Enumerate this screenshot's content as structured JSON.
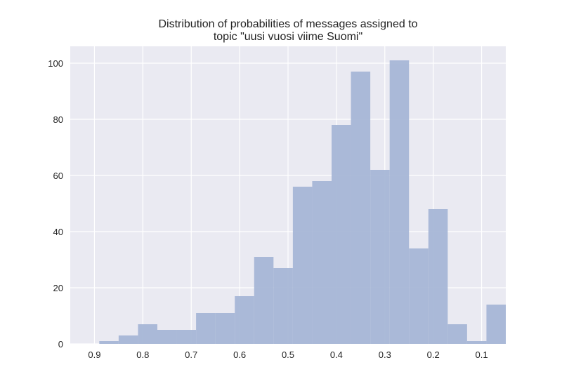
{
  "chart_data": {
    "type": "bar",
    "title_line1": "Distribution of probabilities of messages assigned to",
    "title_line2": "topic \"uusi vuosi viime Suomi\"",
    "xlabel": "",
    "ylabel": "",
    "x_reversed": true,
    "xlim": [
      0.95,
      0.05
    ],
    "ylim": [
      0,
      106
    ],
    "x_ticks": [
      0.9,
      0.8,
      0.7,
      0.6,
      0.5,
      0.4,
      0.3,
      0.2,
      0.1
    ],
    "x_tick_labels": [
      "0.9",
      "0.8",
      "0.7",
      "0.6",
      "0.5",
      "0.4",
      "0.3",
      "0.2",
      "0.1"
    ],
    "y_ticks": [
      0,
      20,
      40,
      60,
      80,
      100
    ],
    "y_tick_labels": [
      "0",
      "20",
      "40",
      "60",
      "80",
      "100"
    ],
    "bins": [
      {
        "start": 0.05,
        "end": 0.09,
        "count": 14
      },
      {
        "start": 0.09,
        "end": 0.13,
        "count": 1
      },
      {
        "start": 0.13,
        "end": 0.17,
        "count": 7
      },
      {
        "start": 0.17,
        "end": 0.21,
        "count": 48
      },
      {
        "start": 0.21,
        "end": 0.25,
        "count": 34
      },
      {
        "start": 0.25,
        "end": 0.29,
        "count": 101
      },
      {
        "start": 0.29,
        "end": 0.33,
        "count": 62
      },
      {
        "start": 0.33,
        "end": 0.37,
        "count": 97
      },
      {
        "start": 0.37,
        "end": 0.41,
        "count": 78
      },
      {
        "start": 0.41,
        "end": 0.45,
        "count": 58
      },
      {
        "start": 0.45,
        "end": 0.49,
        "count": 56
      },
      {
        "start": 0.49,
        "end": 0.53,
        "count": 27
      },
      {
        "start": 0.53,
        "end": 0.57,
        "count": 31
      },
      {
        "start": 0.57,
        "end": 0.61,
        "count": 17
      },
      {
        "start": 0.61,
        "end": 0.65,
        "count": 11
      },
      {
        "start": 0.65,
        "end": 0.69,
        "count": 11
      },
      {
        "start": 0.69,
        "end": 0.73,
        "count": 5
      },
      {
        "start": 0.73,
        "end": 0.77,
        "count": 5
      },
      {
        "start": 0.77,
        "end": 0.81,
        "count": 7
      },
      {
        "start": 0.81,
        "end": 0.85,
        "count": 3
      },
      {
        "start": 0.85,
        "end": 0.89,
        "count": 1
      }
    ],
    "grid": true,
    "bar_color": "#a7b6d6",
    "background_color": "#eaeaf2",
    "grid_color": "#ffffff"
  }
}
